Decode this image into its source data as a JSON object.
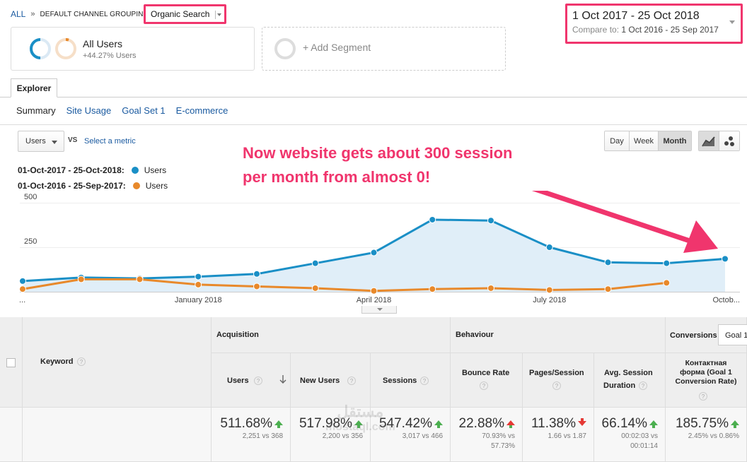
{
  "breadcrumb": {
    "all": "ALL",
    "separator": "»",
    "grouping": "DEFAULT CHANNEL GROUPING",
    "selected": "Organic Search"
  },
  "date": {
    "range": "1 Oct 2017 - 25 Oct 2018",
    "compare_label": "Compare to:",
    "compare_range": "1 Oct 2016 - 25 Sep 2017"
  },
  "segment": {
    "title": "All Users",
    "subtitle": "+44.27% Users",
    "add_label": "+ Add Segment"
  },
  "tabs": {
    "explorer": "Explorer",
    "subtabs": [
      "Summary",
      "Site Usage",
      "Goal Set 1",
      "E-commerce"
    ]
  },
  "controls": {
    "metric": "Users",
    "vs": "VS",
    "select_metric": "Select a metric",
    "periods": [
      "Day",
      "Week",
      "Month"
    ],
    "active_period": "Month"
  },
  "legend": [
    {
      "range": "01-Oct-2017 - 25-Oct-2018:",
      "name": "Users",
      "color": "#1a8fc6"
    },
    {
      "range": "01-Oct-2016 - 25-Sep-2017:",
      "name": "Users",
      "color": "#e8892b"
    }
  ],
  "annotation": {
    "line1": "Now website gets about 300 session",
    "line2": "per month from almost 0!"
  },
  "chart_data": {
    "type": "line",
    "ylim": [
      0,
      500
    ],
    "y_ticks": [
      "500",
      "250"
    ],
    "x_tick_labels": [
      "...",
      "January 2018",
      "April 2018",
      "July 2018",
      "Octob..."
    ],
    "series": [
      {
        "name": "Users",
        "color": "#1a8fc6",
        "values": [
          60,
          80,
          75,
          85,
          100,
          160,
          220,
          405,
          400,
          250,
          165,
          160,
          185
        ]
      },
      {
        "name": "Users",
        "color": "#e8892b",
        "values": [
          15,
          70,
          70,
          40,
          30,
          20,
          5,
          15,
          20,
          10,
          15,
          50
        ]
      }
    ]
  },
  "table": {
    "keyword_label": "Keyword",
    "groups": {
      "acquisition": "Acquisition",
      "behaviour": "Behaviour",
      "conversions": "Conversions",
      "goal_select": "Goal 1"
    },
    "columns": [
      {
        "label": "Users",
        "value": "511.68%",
        "detail": "2,251 vs 368",
        "trend": "up"
      },
      {
        "label": "New Users",
        "value": "517.98%",
        "detail": "2,200 vs 356",
        "trend": "up"
      },
      {
        "label": "Sessions",
        "value": "547.42%",
        "detail": "3,017 vs 466",
        "trend": "up"
      },
      {
        "label": "Bounce Rate",
        "value": "22.88%",
        "detail1": "70.93% vs",
        "detail2": "57.73%",
        "trend": "up-red"
      },
      {
        "label": "Pages/Session",
        "value": "11.38%",
        "detail": "1.66 vs 1.87",
        "trend": "down"
      },
      {
        "label1": "Avg. Session",
        "label2": "Duration",
        "value": "66.14%",
        "detail1": "00:02:03 vs",
        "detail2": "00:01:14",
        "trend": "up"
      },
      {
        "label1": "Контактная",
        "label2": "форма (Goal 1",
        "label3": "Conversion Rate)",
        "value": "185.75%",
        "detail": "2.45% vs 0.86%",
        "trend": "up"
      }
    ]
  },
  "watermark": {
    "line1": "مستقل",
    "line2": "mostaql.com"
  }
}
